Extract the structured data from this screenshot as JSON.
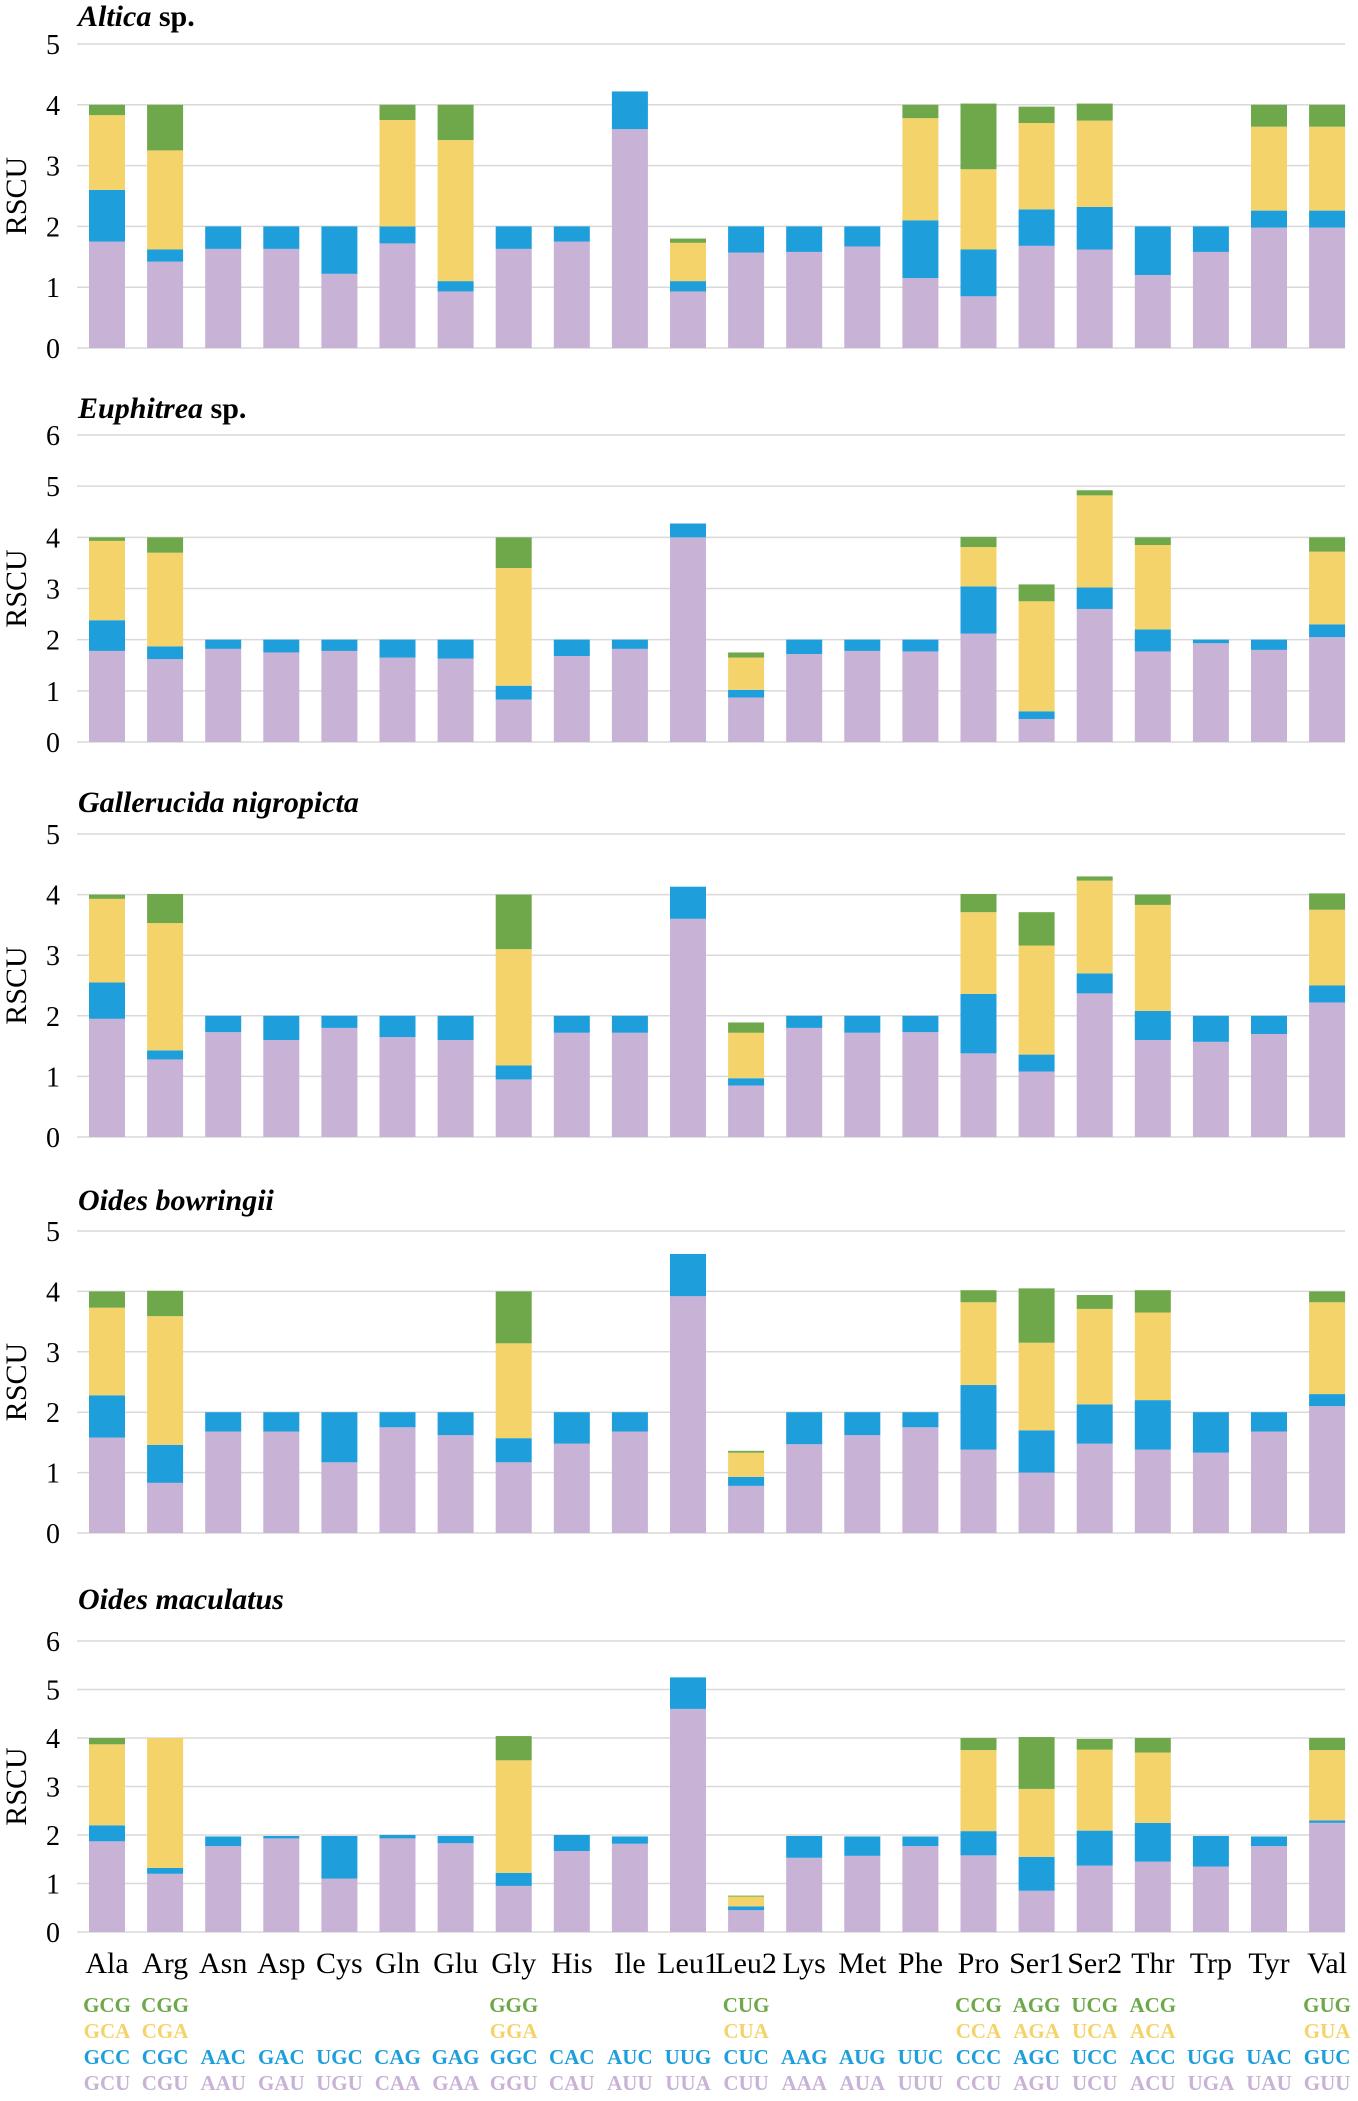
{
  "colors": {
    "layer1": "#c8b2d6",
    "layer2": "#1e9fdb",
    "layer3": "#f5d36b",
    "layer4": "#6ea84a",
    "grid": "#d9d9d9"
  },
  "amino_acids": [
    "Ala",
    "Arg",
    "Asn",
    "Asp",
    "Cys",
    "Gln",
    "Glu",
    "Gly",
    "His",
    "Ile",
    "Leu1",
    "Leu2",
    "Lys",
    "Met",
    "Phe",
    "Pro",
    "Ser1",
    "Ser2",
    "Thr",
    "Trp",
    "Tyr",
    "Val"
  ],
  "codon_legend": {
    "layer4": [
      "GCG",
      "CGG",
      "",
      "",
      "",
      "",
      "",
      "GGG",
      "",
      "",
      "",
      "CUG",
      "",
      "",
      "",
      "CCG",
      "AGG",
      "UCG",
      "ACG",
      "",
      "",
      "GUG"
    ],
    "layer3": [
      "GCA",
      "CGA",
      "",
      "",
      "",
      "",
      "",
      "GGA",
      "",
      "",
      "",
      "CUA",
      "",
      "",
      "",
      "CCA",
      "AGA",
      "UCA",
      "ACA",
      "",
      "",
      "GUA"
    ],
    "layer2": [
      "GCC",
      "CGC",
      "AAC",
      "GAC",
      "UGC",
      "CAG",
      "GAG",
      "GGC",
      "CAC",
      "AUC",
      "UUG",
      "CUC",
      "AAG",
      "AUG",
      "UUC",
      "CCC",
      "AGC",
      "UCC",
      "ACC",
      "UGG",
      "UAC",
      "GUC"
    ],
    "layer1": [
      "GCU",
      "CGU",
      "AAU",
      "GAU",
      "UGU",
      "CAA",
      "GAA",
      "GGU",
      "CAU",
      "AUU",
      "UUA",
      "CUU",
      "AAA",
      "AUA",
      "UUU",
      "CCU",
      "AGU",
      "UCU",
      "ACU",
      "UGA",
      "UAU",
      "GUU"
    ]
  },
  "chart_data": [
    {
      "type": "bar",
      "stacked": true,
      "title": "Altica",
      "title_suffix": "sp.",
      "ylabel": "RSCU",
      "ylim": [
        0,
        5
      ],
      "yticks": [
        "0",
        "1",
        "2",
        "3",
        "4",
        "5"
      ],
      "categories": [
        "Ala",
        "Arg",
        "Asn",
        "Asp",
        "Cys",
        "Gln",
        "Glu",
        "Gly",
        "His",
        "Ile",
        "Leu1",
        "Leu2",
        "Lys",
        "Met",
        "Phe",
        "Pro",
        "Ser1",
        "Ser2",
        "Thr",
        "Trp",
        "Tyr",
        "Val"
      ],
      "series": [
        {
          "name": "codon 1",
          "values": [
            1.75,
            1.42,
            1.63,
            1.63,
            1.22,
            1.72,
            0.93,
            1.63,
            1.75,
            3.6,
            0.93,
            1.57,
            1.58,
            1.67,
            1.15,
            0.85,
            1.68,
            1.62,
            1.2,
            1.58,
            1.98,
            1.98
          ]
        },
        {
          "name": "codon 2",
          "values": [
            0.85,
            0.2,
            0.37,
            0.37,
            0.78,
            0.28,
            0.17,
            0.37,
            0.25,
            0.62,
            0.17,
            0.43,
            0.42,
            0.33,
            0.95,
            0.77,
            0.6,
            0.7,
            0.8,
            0.42,
            0.28,
            0.28
          ]
        },
        {
          "name": "codon 3",
          "values": [
            1.23,
            1.63,
            0,
            0,
            0,
            1.75,
            2.32,
            0,
            0,
            0,
            0.63,
            0,
            0,
            0,
            1.68,
            1.32,
            1.42,
            1.42,
            0,
            0,
            1.38,
            1.38
          ]
        },
        {
          "name": "codon 4",
          "values": [
            0.17,
            0.75,
            0,
            0,
            0,
            0.25,
            0.58,
            0,
            0,
            0,
            0.07,
            0,
            0,
            0,
            0.22,
            1.08,
            0.27,
            0.28,
            0,
            0,
            0.36,
            0.36
          ]
        }
      ]
    },
    {
      "type": "bar",
      "stacked": true,
      "title": "Euphitrea",
      "title_suffix": "sp.",
      "ylabel": "RSCU",
      "ylim": [
        0,
        6
      ],
      "yticks": [
        "0",
        "1",
        "2",
        "3",
        "4",
        "5",
        "6"
      ],
      "categories": [
        "Ala",
        "Arg",
        "Asn",
        "Asp",
        "Cys",
        "Gln",
        "Glu",
        "Gly",
        "His",
        "Ile",
        "Leu1",
        "Leu2",
        "Lys",
        "Met",
        "Phe",
        "Pro",
        "Ser1",
        "Ser2",
        "Thr",
        "Trp",
        "Tyr",
        "Val"
      ],
      "series": [
        {
          "name": "codon 1",
          "values": [
            1.78,
            1.62,
            1.82,
            1.75,
            1.78,
            1.65,
            1.63,
            0.83,
            1.68,
            1.82,
            4.0,
            0.87,
            1.72,
            1.78,
            1.77,
            2.12,
            0.45,
            2.6,
            1.77,
            1.93,
            1.8,
            2.05
          ]
        },
        {
          "name": "codon 2",
          "values": [
            0.6,
            0.25,
            0.18,
            0.25,
            0.22,
            0.35,
            0.37,
            0.27,
            0.32,
            0.18,
            0.27,
            0.15,
            0.28,
            0.22,
            0.23,
            0.92,
            0.15,
            0.42,
            0.43,
            0.07,
            0.2,
            0.25
          ]
        },
        {
          "name": "codon 3",
          "values": [
            1.55,
            1.83,
            0,
            0,
            0,
            0,
            0,
            2.3,
            0,
            0,
            0,
            0.63,
            0,
            0,
            0,
            0.77,
            2.15,
            1.8,
            1.65,
            0,
            0,
            1.42
          ]
        },
        {
          "name": "codon 4",
          "values": [
            0.07,
            0.3,
            0,
            0,
            0,
            0,
            0,
            0.6,
            0,
            0,
            0,
            0.1,
            0,
            0,
            0,
            0.2,
            0.33,
            0.1,
            0.15,
            0,
            0,
            0.28
          ]
        }
      ]
    },
    {
      "type": "bar",
      "stacked": true,
      "title": "Gallerucida nigropicta",
      "title_suffix": "",
      "ylabel": "RSCU",
      "ylim": [
        0,
        5
      ],
      "yticks": [
        "0",
        "1",
        "2",
        "3",
        "4",
        "5"
      ],
      "categories": [
        "Ala",
        "Arg",
        "Asn",
        "Asp",
        "Cys",
        "Gln",
        "Glu",
        "Gly",
        "His",
        "Ile",
        "Leu1",
        "Leu2",
        "Lys",
        "Met",
        "Phe",
        "Pro",
        "Ser1",
        "Ser2",
        "Thr",
        "Trp",
        "Tyr",
        "Val"
      ],
      "series": [
        {
          "name": "codon 1",
          "values": [
            1.95,
            1.28,
            1.73,
            1.6,
            1.8,
            1.65,
            1.6,
            0.95,
            1.72,
            1.72,
            3.6,
            0.85,
            1.8,
            1.72,
            1.73,
            1.38,
            1.08,
            2.37,
            1.6,
            1.57,
            1.7,
            2.22
          ]
        },
        {
          "name": "codon 2",
          "values": [
            0.6,
            0.15,
            0.27,
            0.4,
            0.2,
            0.35,
            0.4,
            0.23,
            0.28,
            0.28,
            0.53,
            0.12,
            0.2,
            0.28,
            0.27,
            0.98,
            0.28,
            0.33,
            0.48,
            0.43,
            0.3,
            0.28
          ]
        },
        {
          "name": "codon 3",
          "values": [
            1.38,
            2.1,
            0,
            0,
            0,
            0,
            0,
            1.92,
            0,
            0,
            0,
            0.75,
            0,
            0,
            0,
            1.35,
            1.8,
            1.53,
            1.75,
            0,
            0,
            1.25
          ]
        },
        {
          "name": "codon 4",
          "values": [
            0.07,
            0.48,
            0,
            0,
            0,
            0,
            0,
            0.9,
            0,
            0,
            0,
            0.17,
            0,
            0,
            0,
            0.3,
            0.55,
            0.07,
            0.17,
            0,
            0,
            0.27
          ]
        }
      ]
    },
    {
      "type": "bar",
      "stacked": true,
      "title": "Oides bowringii",
      "title_suffix": "",
      "ylabel": "RSCU",
      "ylim": [
        0,
        5
      ],
      "yticks": [
        "0",
        "1",
        "2",
        "3",
        "4",
        "5"
      ],
      "categories": [
        "Ala",
        "Arg",
        "Asn",
        "Asp",
        "Cys",
        "Gln",
        "Glu",
        "Gly",
        "His",
        "Ile",
        "Leu1",
        "Leu2",
        "Lys",
        "Met",
        "Phe",
        "Pro",
        "Ser1",
        "Ser2",
        "Thr",
        "Trp",
        "Tyr",
        "Val"
      ],
      "series": [
        {
          "name": "codon 1",
          "values": [
            1.58,
            0.83,
            1.68,
            1.68,
            1.17,
            1.75,
            1.62,
            1.17,
            1.48,
            1.68,
            3.92,
            0.78,
            1.47,
            1.62,
            1.75,
            1.38,
            1.0,
            1.48,
            1.38,
            1.33,
            1.68,
            2.1
          ]
        },
        {
          "name": "codon 2",
          "values": [
            0.7,
            0.63,
            0.32,
            0.32,
            0.83,
            0.25,
            0.38,
            0.4,
            0.52,
            0.32,
            0.7,
            0.15,
            0.53,
            0.38,
            0.25,
            1.07,
            0.7,
            0.65,
            0.82,
            0.67,
            0.32,
            0.2
          ]
        },
        {
          "name": "codon 3",
          "values": [
            1.45,
            2.13,
            0,
            0,
            0,
            0,
            0,
            1.57,
            0,
            0,
            0,
            0.4,
            0,
            0,
            0,
            1.37,
            1.45,
            1.58,
            1.45,
            0,
            0,
            1.52
          ]
        },
        {
          "name": "codon 4",
          "values": [
            0.27,
            0.42,
            0,
            0,
            0,
            0,
            0,
            0.86,
            0,
            0,
            0,
            0.03,
            0,
            0,
            0,
            0.2,
            0.9,
            0.23,
            0.37,
            0,
            0,
            0.18
          ]
        }
      ]
    },
    {
      "type": "bar",
      "stacked": true,
      "title": "Oides maculatus",
      "title_suffix": "",
      "ylabel": "RSCU",
      "ylim": [
        0,
        6
      ],
      "yticks": [
        "0",
        "1",
        "2",
        "3",
        "4",
        "5",
        "6"
      ],
      "categories": [
        "Ala",
        "Arg",
        "Asn",
        "Asp",
        "Cys",
        "Gln",
        "Glu",
        "Gly",
        "His",
        "Ile",
        "Leu1",
        "Leu2",
        "Lys",
        "Met",
        "Phe",
        "Pro",
        "Ser1",
        "Ser2",
        "Thr",
        "Trp",
        "Tyr",
        "Val"
      ],
      "series": [
        {
          "name": "codon 1",
          "values": [
            1.87,
            1.2,
            1.77,
            1.93,
            1.1,
            1.93,
            1.83,
            0.95,
            1.67,
            1.82,
            4.6,
            0.45,
            1.53,
            1.57,
            1.77,
            1.58,
            0.85,
            1.37,
            1.45,
            1.35,
            1.77,
            2.25
          ]
        },
        {
          "name": "codon 2",
          "values": [
            0.33,
            0.12,
            0.2,
            0.05,
            0.88,
            0.07,
            0.15,
            0.27,
            0.33,
            0.15,
            0.65,
            0.08,
            0.45,
            0.4,
            0.2,
            0.5,
            0.7,
            0.72,
            0.8,
            0.63,
            0.2,
            0.05
          ]
        },
        {
          "name": "codon 3",
          "values": [
            1.67,
            2.68,
            0,
            0,
            0,
            0,
            0,
            2.32,
            0,
            0,
            0,
            0.2,
            0,
            0,
            0,
            1.67,
            1.4,
            1.67,
            1.45,
            0,
            0,
            1.45
          ]
        },
        {
          "name": "codon 4",
          "values": [
            0.13,
            0.0,
            0,
            0,
            0,
            0,
            0,
            0.5,
            0,
            0,
            0,
            0.02,
            0,
            0,
            0,
            0.25,
            1.07,
            0.22,
            0.3,
            0,
            0,
            0.25
          ]
        }
      ]
    }
  ]
}
